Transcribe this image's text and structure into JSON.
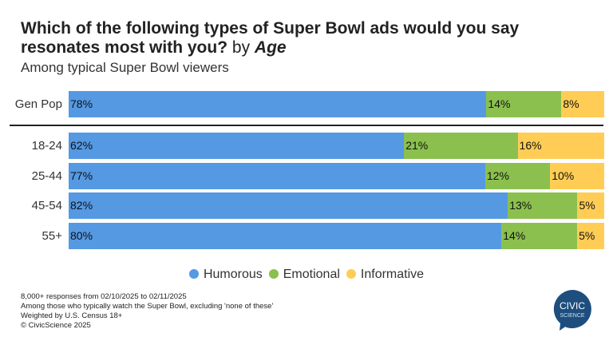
{
  "title_main": "Which of the following types of Super Bowl ads would you say resonates most with you?",
  "title_by": "by",
  "title_dim": "Age",
  "subtitle": "Among typical Super Bowl viewers",
  "chart_data": {
    "type": "bar",
    "orientation": "horizontal",
    "stacked": true,
    "categories": [
      "Gen Pop",
      "18-24",
      "25-44",
      "45-54",
      "55+"
    ],
    "series": [
      {
        "name": "Humorous",
        "color": "#5599E3",
        "values": [
          78,
          62,
          77,
          82,
          80
        ],
        "labels": [
          "78%",
          "62%",
          "77%",
          "82%",
          "80%"
        ]
      },
      {
        "name": "Emotional",
        "color": "#8BC04E",
        "values": [
          14,
          21,
          12,
          13,
          14
        ],
        "labels": [
          "14%",
          "21%",
          "12%",
          "13%",
          "14%"
        ]
      },
      {
        "name": "Informative",
        "color": "#FFCD55",
        "values": [
          8,
          16,
          10,
          5,
          5
        ],
        "labels": [
          "8%",
          "16%",
          "10%",
          "5%",
          "5%"
        ]
      }
    ],
    "xlim": [
      0,
      100
    ],
    "legend": "bottom"
  },
  "notes": [
    "8,000+ responses from 02/10/2025 to 02/11/2025",
    "Among those who typically watch the Super Bowl, excluding 'none of these'",
    "Weighted by U.S. Census 18+",
    "© CivicScience 2025"
  ],
  "logo": {
    "line1": "CIVIC",
    "line2": "SCIENCE",
    "color": "#1D4E7E"
  }
}
